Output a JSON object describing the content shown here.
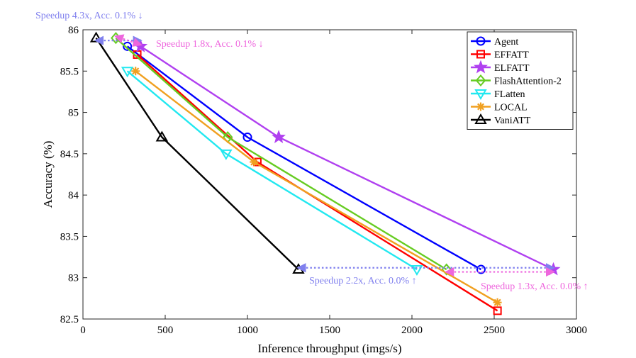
{
  "chart_data": {
    "type": "line",
    "title": "",
    "xlabel": "Inference throughput (imgs/s)",
    "ylabel": "Accuracy (%)",
    "xlim": [
      0,
      3000
    ],
    "ylim": [
      82.5,
      86
    ],
    "xticks": [
      0,
      500,
      1000,
      1500,
      2000,
      2500,
      3000
    ],
    "yticks": [
      82.5,
      83,
      83.5,
      84,
      84.5,
      85,
      85.5,
      86
    ],
    "ytick_labels": [
      "82.5",
      "83",
      "83.5",
      "84",
      "84.5",
      "85",
      "85.5",
      "86"
    ],
    "grid": false,
    "legend_position": "top-right",
    "series": [
      {
        "name": "Agent",
        "color": "#0000ff",
        "marker": "circle",
        "x": [
          270,
          1000,
          2420
        ],
        "y": [
          85.8,
          84.7,
          83.1
        ]
      },
      {
        "name": "EFFATT",
        "color": "#ff0000",
        "marker": "square",
        "x": [
          330,
          1060,
          2520
        ],
        "y": [
          85.7,
          84.4,
          82.6
        ]
      },
      {
        "name": "ELFATT",
        "color": "#b040f0",
        "marker": "star",
        "x": [
          350,
          1190,
          2860
        ],
        "y": [
          85.8,
          84.7,
          83.1
        ]
      },
      {
        "name": "FlashAttention-2",
        "color": "#66cc22",
        "marker": "diamond",
        "x": [
          200,
          880,
          2210
        ],
        "y": [
          85.9,
          84.7,
          83.1
        ]
      },
      {
        "name": "FLatten",
        "color": "#22e8f0",
        "marker": "triangle-down",
        "x": [
          270,
          870,
          2030
        ],
        "y": [
          85.5,
          84.5,
          83.1
        ]
      },
      {
        "name": "LOCAL",
        "color": "#f0a020",
        "marker": "asterisk",
        "x": [
          320,
          1040,
          2520
        ],
        "y": [
          85.5,
          84.4,
          82.7
        ]
      },
      {
        "name": "VaniATT",
        "color": "#000000",
        "marker": "triangle-up",
        "x": [
          80,
          480,
          1310
        ],
        "y": [
          85.9,
          84.7,
          83.1
        ]
      }
    ],
    "annotations": [
      {
        "text": "Speedup 4.3x, Acc. 0.1% ↓",
        "color": "#8080ee",
        "arrow_from": [
          80,
          85.87
        ],
        "arrow_to": [
          350,
          85.87
        ]
      },
      {
        "text": "Speedup 1.8x, Acc. 0.1% ↓",
        "color": "#ee66dd",
        "arrow_from": [
          200,
          85.92
        ],
        "arrow_to": [
          350,
          85.82
        ]
      },
      {
        "text": "Speedup 2.2x, Acc. 0.0% ↑",
        "color": "#8080ee",
        "arrow_from": [
          1310,
          83.12
        ],
        "arrow_to": [
          2860,
          83.12
        ]
      },
      {
        "text": "Speedup 1.3x, Acc. 0.0% ↑",
        "color": "#ee66dd",
        "arrow_from": [
          2210,
          83.07
        ],
        "arrow_to": [
          2860,
          83.07
        ]
      }
    ]
  }
}
